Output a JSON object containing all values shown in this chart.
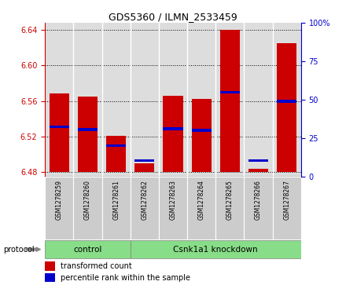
{
  "title": "GDS5360 / ILMN_2533459",
  "samples": [
    "GSM1278259",
    "GSM1278260",
    "GSM1278261",
    "GSM1278262",
    "GSM1278263",
    "GSM1278264",
    "GSM1278265",
    "GSM1278266",
    "GSM1278267"
  ],
  "red_values": [
    6.569,
    6.565,
    6.521,
    6.49,
    6.566,
    6.562,
    6.64,
    6.484,
    6.625
  ],
  "blue_values": [
    6.531,
    6.528,
    6.51,
    6.493,
    6.529,
    6.527,
    6.57,
    6.493,
    6.56
  ],
  "bar_bottom": 6.48,
  "ylim_left": [
    6.475,
    6.648
  ],
  "ylim_right": [
    0,
    100
  ],
  "yticks_left": [
    6.48,
    6.52,
    6.56,
    6.6,
    6.64
  ],
  "yticks_right": [
    0,
    25,
    50,
    75,
    100
  ],
  "ytick_labels_right": [
    "0",
    "25",
    "50",
    "75",
    "100%"
  ],
  "control_samples": [
    0,
    1,
    2
  ],
  "knockdown_samples": [
    3,
    4,
    5,
    6,
    7,
    8
  ],
  "control_label": "control",
  "knockdown_label": "Csnk1a1 knockdown",
  "protocol_label": "protocol",
  "legend1": "transformed count",
  "legend2": "percentile rank within the sample",
  "red_color": "#cc0000",
  "blue_color": "#0000cc",
  "green_color": "#88dd88",
  "bar_width": 0.7,
  "bg_color": "#dddddd",
  "label_bg_color": "#cccccc"
}
